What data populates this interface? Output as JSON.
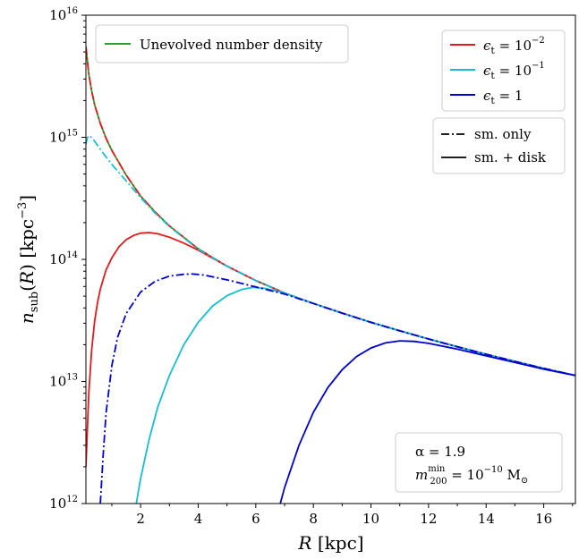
{
  "chart_data": {
    "type": "line",
    "xlabel": "R [kpc]",
    "ylabel": "n_sub(R) [kpc^-3]",
    "xlim": [
      0.1,
      17.1
    ],
    "ylim_log10": [
      12,
      16
    ],
    "yscale": "log",
    "x_ticks": [
      2,
      4,
      6,
      8,
      10,
      12,
      14,
      16
    ],
    "y_ticks": [
      {
        "value": 1000000000000.0,
        "base": "10",
        "exp": "12"
      },
      {
        "value": 10000000000000.0,
        "base": "10",
        "exp": "13"
      },
      {
        "value": 100000000000000.0,
        "base": "10",
        "exp": "14"
      },
      {
        "value": 1000000000000000.0,
        "base": "10",
        "exp": "15"
      },
      {
        "value": 1e+16,
        "base": "10",
        "exp": "16"
      }
    ],
    "grid": false,
    "legend_unevolved": {
      "placement": "top-left",
      "label": "Unevolved number density",
      "color": "#2ca02c"
    },
    "legend_eps": {
      "placement": "top-right",
      "entries": [
        {
          "label_sym": "ϵ",
          "label_sub": "t",
          "label_eq": " = 10",
          "label_exp": "−2",
          "color": "#e31a1c"
        },
        {
          "label_sym": "ϵ",
          "label_sub": "t",
          "label_eq": " = 10",
          "label_exp": "−1",
          "color": "#17becf"
        },
        {
          "label_sym": "ϵ",
          "label_sub": "t",
          "label_eq": " = 1",
          "label_exp": "",
          "color": "#0000cc"
        }
      ]
    },
    "legend_style": {
      "placement": "upper-right",
      "entries": [
        {
          "label": "sm. only",
          "dash": "dashdot"
        },
        {
          "label": "sm. + disk",
          "dash": "solid"
        }
      ]
    },
    "annotation": {
      "placement": "bottom-right",
      "line1": "α = 1.9",
      "line2_pre": "m",
      "line2_sup": "min",
      "line2_sub": "200",
      "line2_mid": " = 10",
      "line2_exp": "−10",
      "line2_unit": " M",
      "line2_unit_sub": "⊙"
    },
    "series": [
      {
        "name": "Unevolved number density",
        "color": "#2ca02c",
        "dash": "solid",
        "x": [
          0.1,
          0.2,
          0.3,
          0.4,
          0.6,
          0.8,
          1.0,
          1.5,
          2.0,
          2.5,
          3.0,
          4.0,
          5.0,
          6.0,
          7.0,
          8.0,
          9.0,
          10.0,
          11.0,
          12.0,
          13.0,
          14.0,
          15.0,
          16.0,
          17.1
        ],
        "y": [
          5500000000000000.0,
          3300000000000000.0,
          2400000000000000.0,
          1850000000000000.0,
          1300000000000000.0,
          980000000000000.0,
          780000000000000.0,
          490000000000000.0,
          330000000000000.0,
          245000000000000.0,
          188000000000000.0,
          122000000000000.0,
          88000000000000.0,
          67000000000000.0,
          53000000000000.0,
          43500000000000.0,
          36200000000000.0,
          30500000000000.0,
          26000000000000.0,
          22300000000000.0,
          19200000000000.0,
          16700000000000.0,
          14600000000000.0,
          12800000000000.0,
          11200000000000.0
        ]
      },
      {
        "name": "ϵt = 10^-2, sm. + disk",
        "color": "#e31a1c",
        "dash": "solid",
        "x": [
          0.1,
          0.2,
          0.3,
          0.4,
          0.5,
          0.6,
          0.8,
          1.0,
          1.25,
          1.5,
          1.75,
          2.0,
          2.3,
          2.6,
          3.0,
          3.5,
          4.0,
          5.0,
          6.0,
          7.0,
          8.0,
          10.0,
          12.0,
          14.0,
          16.0,
          17.1
        ],
        "y": [
          2000000000000.0,
          8000000000000.0,
          18000000000000.0,
          31000000000000.0,
          44000000000000.0,
          57000000000000.0,
          82000000000000.0,
          103000000000000.0,
          127000000000000.0,
          145000000000000.0,
          157000000000000.0,
          164000000000000.0,
          166000000000000.0,
          162000000000000.0,
          152000000000000.0,
          136000000000000.0,
          119000000000000.0,
          88000000000000.0,
          67000000000000.0,
          53000000000000.0,
          43500000000000.0,
          30500000000000.0,
          22300000000000.0,
          16700000000000.0,
          12800000000000.0,
          11200000000000.0
        ]
      },
      {
        "name": "ϵt = 10^-2, sm. only",
        "color": "#e31a1c",
        "dash": "dashdot",
        "x": [
          0.1,
          0.2,
          0.3,
          0.4,
          0.6,
          0.8,
          1.0,
          1.5,
          2.0,
          2.5,
          3.0,
          4.0,
          5.0,
          6.0,
          7.0,
          8.0,
          9.0,
          10.0,
          11.0,
          12.0,
          13.0,
          14.0,
          15.0,
          16.0,
          17.1
        ],
        "y": [
          5500000000000000.0,
          3300000000000000.0,
          2400000000000000.0,
          1850000000000000.0,
          1300000000000000.0,
          980000000000000.0,
          780000000000000.0,
          490000000000000.0,
          330000000000000.0,
          245000000000000.0,
          188000000000000.0,
          122000000000000.0,
          88000000000000.0,
          67000000000000.0,
          53000000000000.0,
          43500000000000.0,
          36200000000000.0,
          30500000000000.0,
          26000000000000.0,
          22300000000000.0,
          19200000000000.0,
          16700000000000.0,
          14600000000000.0,
          12800000000000.0,
          11200000000000.0
        ]
      },
      {
        "name": "ϵt = 10^-1, sm. + disk",
        "color": "#17becf",
        "dash": "solid",
        "x": [
          1.85,
          2.0,
          2.3,
          2.6,
          3.0,
          3.5,
          4.0,
          4.5,
          5.0,
          5.5,
          5.9,
          6.3,
          7.0,
          8.0,
          9.0,
          10.0,
          11.0,
          12.0,
          13.0,
          14.0,
          15.0,
          16.0,
          17.1
        ],
        "y": [
          1000000000000.0,
          1600000000000.0,
          3400000000000.0,
          6200000000000.0,
          11200000000000.0,
          20000000000000.0,
          30500000000000.0,
          41500000000000.0,
          50500000000000.0,
          56500000000000.0,
          59000000000000.0,
          58000000000000.0,
          53000000000000.0,
          43500000000000.0,
          36200000000000.0,
          30500000000000.0,
          26000000000000.0,
          22300000000000.0,
          19200000000000.0,
          16700000000000.0,
          14600000000000.0,
          12800000000000.0,
          11200000000000.0
        ]
      },
      {
        "name": "ϵt = 10^-1, sm. only",
        "color": "#17becf",
        "dash": "dashdot",
        "x": [
          0.1,
          0.15,
          0.2,
          0.25,
          0.3,
          0.4,
          0.5,
          0.6,
          0.8,
          1.0,
          1.5,
          2.0,
          2.5,
          3.0,
          4.0,
          5.0,
          6.0,
          7.0,
          8.0,
          9.0,
          10.0,
          11.0,
          12.0,
          14.0,
          16.0,
          17.1
        ],
        "y": [
          880000000000000.0,
          990000000000000.0,
          1030000000000000.0,
          1020000000000000.0,
          990000000000000.0,
          930000000000000.0,
          860000000000000.0,
          800000000000000.0,
          690000000000000.0,
          600000000000000.0,
          440000000000000.0,
          320000000000000.0,
          240000000000000.0,
          186000000000000.0,
          121000000000000.0,
          88000000000000.0,
          67000000000000.0,
          53000000000000.0,
          43500000000000.0,
          36200000000000.0,
          30500000000000.0,
          26000000000000.0,
          22300000000000.0,
          16700000000000.0,
          12800000000000.0,
          11200000000000.0
        ]
      },
      {
        "name": "ϵt = 1, sm. + disk",
        "color": "#0000cc",
        "dash": "solid",
        "x": [
          6.85,
          7.0,
          7.5,
          8.0,
          8.5,
          9.0,
          9.5,
          10.0,
          10.5,
          11.0,
          11.5,
          12.0,
          13.0,
          14.0,
          15.0,
          16.0,
          17.1
        ],
        "y": [
          1000000000000.0,
          1350000000000.0,
          3000000000000.0,
          5600000000000.0,
          8900000000000.0,
          12500000000000.0,
          16000000000000.0,
          18800000000000.0,
          20700000000000.0,
          21500000000000.0,
          21300000000000.0,
          20500000000000.0,
          18400000000000.0,
          16200000000000.0,
          14300000000000.0,
          12600000000000.0,
          11200000000000.0
        ]
      },
      {
        "name": "ϵt = 1, sm. only",
        "color": "#0000cc",
        "dash": "dashdot",
        "x": [
          0.6,
          0.7,
          0.8,
          1.0,
          1.2,
          1.5,
          2.0,
          2.5,
          3.0,
          3.5,
          3.8,
          4.2,
          5.0,
          6.0,
          7.0,
          8.0,
          9.0,
          10.0,
          11.0,
          12.0,
          13.0,
          14.0,
          15.0,
          16.0,
          17.1
        ],
        "y": [
          1000000000000.0,
          2500000000000.0,
          5500000000000.0,
          13500000000000.0,
          23000000000000.0,
          36000000000000.0,
          54000000000000.0,
          66000000000000.0,
          73000000000000.0,
          75500000000000.0,
          76000000000000.0,
          74500000000000.0,
          68000000000000.0,
          59500000000000.0,
          52000000000000.0,
          43500000000000.0,
          36200000000000.0,
          30500000000000.0,
          26000000000000.0,
          22300000000000.0,
          19200000000000.0,
          16700000000000.0,
          14600000000000.0,
          12800000000000.0,
          11200000000000.0
        ]
      }
    ]
  }
}
